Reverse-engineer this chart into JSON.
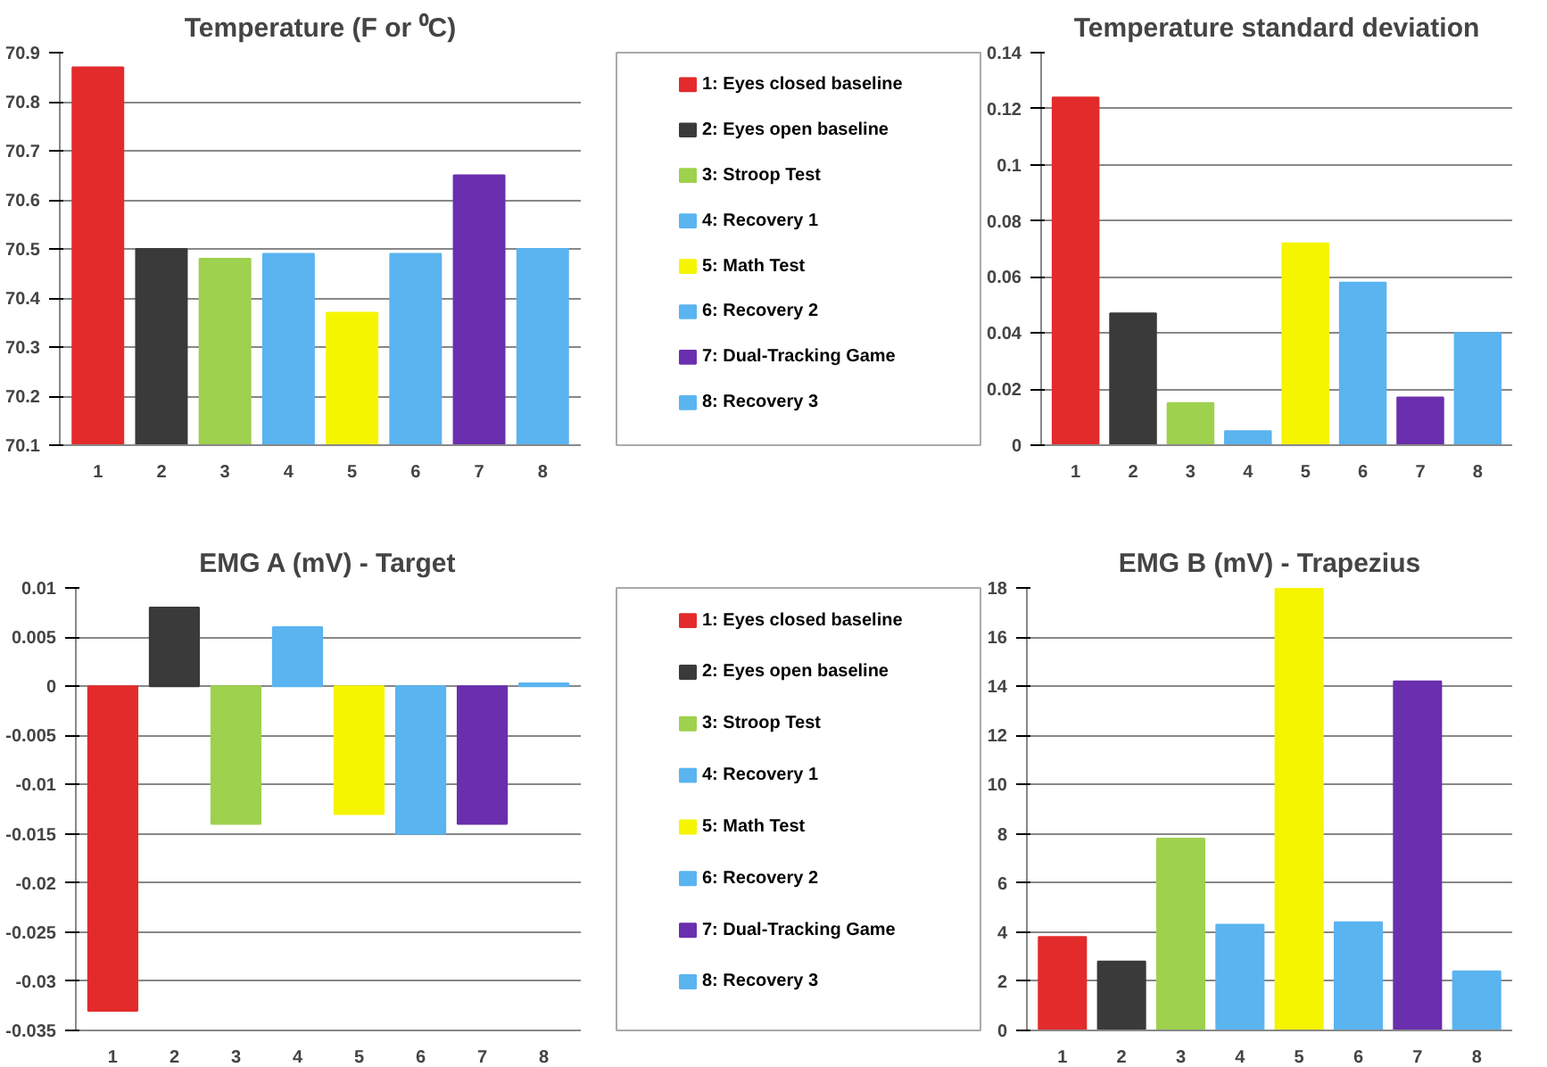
{
  "chart_data": [
    {
      "type": "bar",
      "title": "Temperature (F or ⁰C)",
      "categories": [
        "1",
        "2",
        "3",
        "4",
        "5",
        "6",
        "7",
        "8"
      ],
      "values": [
        70.87,
        70.5,
        70.48,
        70.49,
        70.37,
        70.49,
        70.65,
        70.5
      ],
      "colors": [
        "#e32b2b",
        "#3a3a3a",
        "#9ed14e",
        "#5ab4f0",
        "#f5f500",
        "#5ab4f0",
        "#6a2fae",
        "#5ab4f0"
      ],
      "ylim": [
        70.1,
        70.9
      ],
      "yticks": [
        70.1,
        70.2,
        70.3,
        70.4,
        70.5,
        70.6,
        70.7,
        70.8,
        70.9
      ],
      "grid": "y"
    },
    {
      "type": "other",
      "categories": [
        "1: Eyes closed baseline",
        "2: Eyes open baseline",
        "3: Stroop Test",
        "4: Recovery 1",
        "5: Math Test",
        "6: Recovery 2",
        "7: Dual-Tracking Game",
        "8: Recovery 3"
      ],
      "colors": [
        "#e32b2b",
        "#3a3a3a",
        "#9ed14e",
        "#5ab4f0",
        "#f5f500",
        "#5ab4f0",
        "#6a2fae",
        "#5ab4f0"
      ]
    },
    {
      "type": "bar",
      "title": "Temperature standard deviation",
      "categories": [
        "1",
        "2",
        "3",
        "4",
        "5",
        "6",
        "7",
        "8"
      ],
      "values": [
        0.124,
        0.047,
        0.015,
        0.005,
        0.072,
        0.058,
        0.017,
        0.04
      ],
      "colors": [
        "#e32b2b",
        "#3a3a3a",
        "#9ed14e",
        "#5ab4f0",
        "#f5f500",
        "#5ab4f0",
        "#6a2fae",
        "#5ab4f0"
      ],
      "ylim": [
        0,
        0.14
      ],
      "yticks": [
        0,
        0.02,
        0.04,
        0.06,
        0.08,
        0.1,
        0.12,
        0.14
      ],
      "grid": "y"
    },
    {
      "type": "bar",
      "title": "EMG A (mV) - Target",
      "categories": [
        "1",
        "2",
        "3",
        "4",
        "5",
        "6",
        "7",
        "8"
      ],
      "values": [
        -0.033,
        0.008,
        -0.014,
        0.006,
        -0.013,
        -0.015,
        -0.014,
        0.0003
      ],
      "colors": [
        "#e32b2b",
        "#3a3a3a",
        "#9ed14e",
        "#5ab4f0",
        "#f5f500",
        "#5ab4f0",
        "#6a2fae",
        "#5ab4f0"
      ],
      "ylim": [
        -0.035,
        0.01
      ],
      "yticks": [
        -0.035,
        -0.03,
        -0.025,
        -0.02,
        -0.015,
        -0.01,
        -0.005,
        0,
        0.005,
        0.01
      ],
      "grid": "y"
    },
    {
      "type": "other",
      "categories": [
        "1: Eyes closed baseline",
        "2: Eyes open baseline",
        "3: Stroop Test",
        "4: Recovery 1",
        "5: Math Test",
        "6: Recovery 2",
        "7: Dual-Tracking Game",
        "8: Recovery 3"
      ],
      "colors": [
        "#e32b2b",
        "#3a3a3a",
        "#9ed14e",
        "#5ab4f0",
        "#f5f500",
        "#5ab4f0",
        "#6a2fae",
        "#5ab4f0"
      ]
    },
    {
      "type": "bar",
      "title": "EMG B (mV) - Trapezius",
      "categories": [
        "1",
        "2",
        "3",
        "4",
        "5",
        "6",
        "7",
        "8"
      ],
      "values": [
        3.8,
        2.8,
        7.8,
        4.3,
        18,
        4.4,
        14.2,
        2.4
      ],
      "colors": [
        "#e32b2b",
        "#3a3a3a",
        "#9ed14e",
        "#5ab4f0",
        "#f5f500",
        "#5ab4f0",
        "#6a2fae",
        "#5ab4f0"
      ],
      "ylim": [
        0,
        18
      ],
      "yticks": [
        0,
        2,
        4,
        6,
        8,
        10,
        12,
        14,
        16,
        18
      ],
      "grid": "y"
    }
  ]
}
